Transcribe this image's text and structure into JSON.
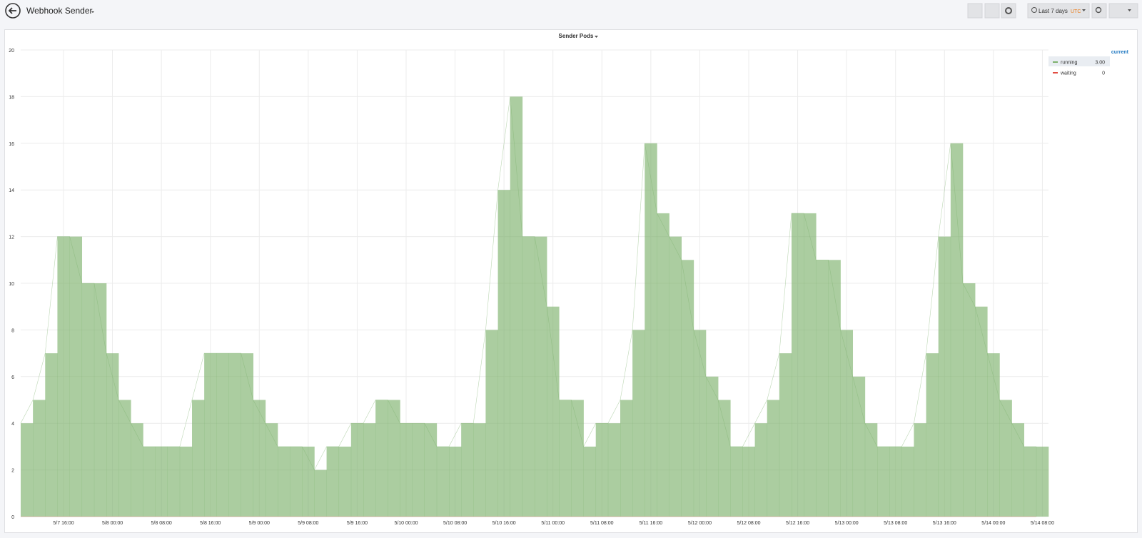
{
  "header": {
    "title": "Webhook Sender",
    "time_range": "Last 7 days",
    "timezone": "UTC"
  },
  "chart_data": {
    "type": "area",
    "title": "Sender Pods",
    "legend_header": "current",
    "x": [
      "5/7 09:00",
      "5/7 11:00",
      "5/7 13:00",
      "5/7 15:00",
      "5/7 17:00",
      "5/7 19:00",
      "5/7 21:00",
      "5/7 23:00",
      "5/8 01:00",
      "5/8 03:00",
      "5/8 05:00",
      "5/8 07:00",
      "5/8 09:00",
      "5/8 11:00",
      "5/8 13:00",
      "5/8 15:00",
      "5/8 17:00",
      "5/8 19:00",
      "5/8 21:00",
      "5/8 23:00",
      "5/9 01:00",
      "5/9 03:00",
      "5/9 05:00",
      "5/9 07:00",
      "5/9 09:00",
      "5/9 11:00",
      "5/9 13:00",
      "5/9 15:00",
      "5/9 17:00",
      "5/9 19:00",
      "5/9 21:00",
      "5/9 23:00",
      "5/10 01:00",
      "5/10 03:00",
      "5/10 05:00",
      "5/10 07:00",
      "5/10 09:00",
      "5/10 11:00",
      "5/10 13:00",
      "5/10 15:00",
      "5/10 17:00",
      "5/10 19:00",
      "5/10 21:00",
      "5/10 23:00",
      "5/11 01:00",
      "5/11 03:00",
      "5/11 05:00",
      "5/11 07:00",
      "5/11 09:00",
      "5/11 11:00",
      "5/11 13:00",
      "5/11 15:00",
      "5/11 17:00",
      "5/11 19:00",
      "5/11 21:00",
      "5/11 23:00",
      "5/12 01:00",
      "5/12 03:00",
      "5/12 05:00",
      "5/12 07:00",
      "5/12 09:00",
      "5/12 11:00",
      "5/12 13:00",
      "5/12 15:00",
      "5/12 17:00",
      "5/12 19:00",
      "5/12 21:00",
      "5/12 23:00",
      "5/13 01:00",
      "5/13 03:00",
      "5/13 05:00",
      "5/13 07:00",
      "5/13 09:00",
      "5/13 11:00",
      "5/13 13:00",
      "5/13 15:00",
      "5/13 17:00",
      "5/13 19:00",
      "5/13 21:00",
      "5/13 23:00",
      "5/14 01:00",
      "5/14 03:00",
      "5/14 05:00",
      "5/14 07:00"
    ],
    "series": [
      {
        "name": "running",
        "color": "#7eb26d",
        "current": {
          "value": 3,
          "label": "3.00"
        },
        "values": [
          4,
          5,
          7,
          12,
          12,
          10,
          10,
          7,
          5,
          4,
          3,
          3,
          3,
          3,
          5,
          7,
          7,
          7,
          7,
          5,
          4,
          3,
          3,
          3,
          2,
          3,
          3,
          4,
          4,
          5,
          5,
          4,
          4,
          4,
          3,
          3,
          4,
          4,
          8,
          14,
          18,
          12,
          12,
          9,
          5,
          5,
          3,
          4,
          4,
          5,
          8,
          16,
          13,
          12,
          11,
          8,
          6,
          5,
          3,
          3,
          4,
          5,
          7,
          13,
          13,
          11,
          11,
          8,
          6,
          4,
          3,
          3,
          3,
          4,
          7,
          12,
          16,
          10,
          9,
          7,
          5,
          4,
          3,
          3
        ]
      },
      {
        "name": "waiting",
        "color": "#e24d42",
        "current": 0,
        "values": [
          0,
          0,
          0,
          0,
          0,
          0,
          0,
          0,
          0,
          0,
          0,
          0,
          0,
          0,
          0,
          0,
          0,
          0,
          0,
          0,
          0,
          0,
          0,
          0,
          0,
          0,
          0,
          0,
          0,
          0,
          0,
          0,
          0,
          0,
          0,
          0,
          0,
          0,
          0,
          0,
          0,
          0,
          0,
          0,
          0,
          0,
          0,
          0,
          0,
          0,
          0,
          0,
          0,
          0,
          0,
          0,
          0,
          0,
          0,
          0,
          0,
          0,
          0,
          0,
          0,
          0,
          0,
          0,
          0,
          0,
          0,
          0,
          0,
          0,
          0,
          0,
          0,
          0,
          0,
          0,
          0,
          0,
          0,
          0
        ]
      }
    ],
    "xlim": [
      "5/7 09:00",
      "5/14 09:00"
    ],
    "xticks": [
      "5/7 16:00",
      "5/8 00:00",
      "5/8 08:00",
      "5/8 16:00",
      "5/9 00:00",
      "5/9 08:00",
      "5/9 16:00",
      "5/10 00:00",
      "5/10 08:00",
      "5/10 16:00",
      "5/11 00:00",
      "5/11 08:00",
      "5/11 16:00",
      "5/12 00:00",
      "5/12 08:00",
      "5/12 16:00",
      "5/13 00:00",
      "5/13 08:00",
      "5/13 16:00",
      "5/14 00:00",
      "5/14 08:00"
    ],
    "ylim": [
      0,
      20
    ],
    "yticks": [
      0,
      2,
      4,
      6,
      8,
      10,
      12,
      14,
      16,
      18,
      20
    ],
    "grid": true,
    "legend": "right",
    "fill_opacity": 0.65
  }
}
